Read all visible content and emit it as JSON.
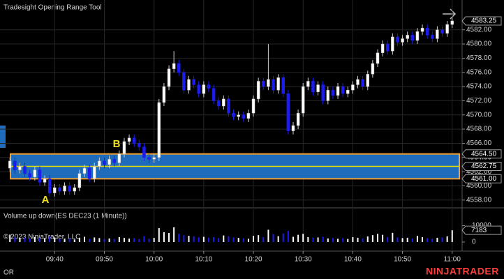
{
  "chart_data": {
    "type": "candlestick",
    "title": "Tradesight Opening Range Tool",
    "x": [
      "09:31",
      "09:32",
      "09:33",
      "09:34",
      "09:35",
      "09:36",
      "09:37",
      "09:38",
      "09:39",
      "09:40",
      "09:41",
      "09:42",
      "09:43",
      "09:44",
      "09:45",
      "09:46",
      "09:47",
      "09:48",
      "09:49",
      "09:50",
      "09:51",
      "09:52",
      "09:53",
      "09:54",
      "09:55",
      "09:56",
      "09:57",
      "09:58",
      "09:59",
      "10:00",
      "10:01",
      "10:02",
      "10:03",
      "10:04",
      "10:05",
      "10:06",
      "10:07",
      "10:08",
      "10:09",
      "10:10",
      "10:11",
      "10:12",
      "10:13",
      "10:14",
      "10:15",
      "10:16",
      "10:17",
      "10:18",
      "10:19",
      "10:20",
      "10:21",
      "10:22",
      "10:23",
      "10:24",
      "10:25",
      "10:26",
      "10:27",
      "10:28",
      "10:29",
      "10:30",
      "10:31",
      "10:32",
      "10:33",
      "10:34",
      "10:35",
      "10:36",
      "10:37",
      "10:38",
      "10:39",
      "10:40",
      "10:41",
      "10:42",
      "10:43",
      "10:44",
      "10:45",
      "10:46",
      "10:47",
      "10:48",
      "10:49",
      "10:50",
      "10:51",
      "10:52",
      "10:53",
      "10:54",
      "10:55",
      "10:56",
      "10:57",
      "10:58",
      "10:59",
      "11:00"
    ],
    "open": [
      4562.5,
      4563.5,
      4562.25,
      4562.75,
      4561.75,
      4561.25,
      4562.25,
      4560.5,
      4561.0,
      4559.0,
      4559.75,
      4559.25,
      4560.0,
      4559.25,
      4559.75,
      4561.75,
      4562.5,
      4561.0,
      4562.75,
      4563.5,
      4563.0,
      4563.75,
      4563.25,
      4564.5,
      4566.25,
      4566.75,
      4566.0,
      4565.5,
      4564.0,
      4563.75,
      4564.0,
      4571.75,
      4574.0,
      4576.5,
      4577.25,
      4576.0,
      4573.5,
      4575.0,
      4574.25,
      4573.0,
      4574.25,
      4573.75,
      4572.0,
      4571.25,
      4572.25,
      4570.25,
      4569.75,
      4570.0,
      4569.5,
      4570.25,
      4572.25,
      4574.75,
      4574.0,
      4575.0,
      4573.5,
      4575.25,
      4573.0,
      4567.75,
      4568.5,
      4570.25,
      4574.0,
      4574.75,
      4573.25,
      4574.25,
      4572.0,
      4573.5,
      4572.75,
      4574.0,
      4573.0,
      4573.5,
      4574.25,
      4575.0,
      4574.0,
      4575.75,
      4577.25,
      4578.75,
      4580.0,
      4579.0,
      4581.0,
      4580.25,
      4580.75,
      4581.25,
      4580.5,
      4581.75,
      4582.25,
      4581.25,
      4580.75,
      4582.0,
      4581.5,
      4582.75
    ],
    "high": [
      4564.0,
      4564.0,
      4563.25,
      4563.25,
      4562.25,
      4562.75,
      4562.75,
      4561.5,
      4561.5,
      4560.25,
      4560.25,
      4560.5,
      4560.5,
      4560.25,
      4562.25,
      4563.0,
      4563.0,
      4563.25,
      4564.0,
      4564.0,
      4564.25,
      4564.25,
      4565.0,
      4566.75,
      4567.25,
      4567.25,
      4566.5,
      4566.0,
      4564.5,
      4564.5,
      4572.25,
      4574.5,
      4577.0,
      4579.0,
      4577.75,
      4576.5,
      4575.5,
      4575.5,
      4574.75,
      4574.75,
      4574.75,
      4574.25,
      4572.5,
      4572.75,
      4572.75,
      4570.75,
      4570.5,
      4570.5,
      4570.75,
      4572.75,
      4575.25,
      4575.25,
      4580.0,
      4575.5,
      4575.75,
      4575.75,
      4573.5,
      4569.0,
      4570.75,
      4574.5,
      4575.25,
      4575.25,
      4574.75,
      4574.75,
      4574.0,
      4574.0,
      4574.5,
      4574.5,
      4574.0,
      4574.75,
      4575.5,
      4575.5,
      4576.25,
      4577.75,
      4579.25,
      4580.5,
      4580.5,
      4581.5,
      4581.5,
      4581.25,
      4581.75,
      4581.75,
      4582.25,
      4582.75,
      4582.75,
      4581.75,
      4582.5,
      4582.5,
      4583.25,
      4583.75
    ],
    "low": [
      4562.0,
      4561.75,
      4561.75,
      4561.25,
      4560.75,
      4560.75,
      4560.0,
      4560.0,
      4558.5,
      4558.5,
      4558.75,
      4558.75,
      4558.75,
      4558.75,
      4559.25,
      4561.25,
      4560.5,
      4560.5,
      4562.25,
      4562.5,
      4562.5,
      4562.75,
      4562.75,
      4564.0,
      4565.75,
      4565.5,
      4565.0,
      4563.5,
      4563.25,
      4563.25,
      4563.5,
      4571.25,
      4573.5,
      4576.0,
      4575.5,
      4573.0,
      4573.0,
      4573.75,
      4572.5,
      4572.5,
      4573.25,
      4571.5,
      4570.75,
      4570.75,
      4569.75,
      4569.25,
      4569.25,
      4569.0,
      4569.0,
      4569.75,
      4571.75,
      4573.5,
      4573.5,
      4573.0,
      4573.0,
      4572.5,
      4567.25,
      4567.25,
      4568.0,
      4569.75,
      4573.5,
      4572.75,
      4572.75,
      4571.5,
      4571.5,
      4572.25,
      4572.25,
      4572.5,
      4572.5,
      4573.0,
      4573.75,
      4573.5,
      4573.5,
      4575.25,
      4576.75,
      4578.25,
      4578.5,
      4578.5,
      4579.75,
      4579.75,
      4580.25,
      4580.0,
      4580.0,
      4581.25,
      4580.75,
      4580.25,
      4580.25,
      4581.0,
      4581.0,
      4582.25
    ],
    "close": [
      4563.5,
      4562.25,
      4562.75,
      4561.75,
      4561.25,
      4562.25,
      4560.5,
      4561.0,
      4559.0,
      4559.75,
      4559.25,
      4560.0,
      4559.25,
      4559.75,
      4561.75,
      4562.5,
      4561.0,
      4562.75,
      4563.5,
      4563.0,
      4563.75,
      4563.25,
      4564.5,
      4566.25,
      4566.75,
      4566.0,
      4565.5,
      4564.0,
      4563.75,
      4564.0,
      4571.75,
      4574.0,
      4576.5,
      4577.25,
      4576.0,
      4573.5,
      4575.0,
      4574.25,
      4573.0,
      4574.25,
      4573.75,
      4572.0,
      4571.25,
      4572.25,
      4570.25,
      4569.75,
      4570.0,
      4569.5,
      4570.25,
      4572.25,
      4574.75,
      4574.0,
      4575.0,
      4573.5,
      4575.25,
      4573.0,
      4567.75,
      4568.5,
      4570.25,
      4574.0,
      4574.75,
      4573.25,
      4574.25,
      4572.0,
      4573.5,
      4572.75,
      4574.0,
      4573.0,
      4573.5,
      4574.25,
      4575.0,
      4574.0,
      4575.75,
      4577.25,
      4578.75,
      4580.0,
      4579.0,
      4581.0,
      4580.25,
      4580.75,
      4581.25,
      4580.5,
      4581.75,
      4582.25,
      4581.25,
      4580.75,
      4582.0,
      4581.5,
      4582.75,
      4583.25
    ],
    "up_color": "#ffffff",
    "down_color": "#1c1cf0",
    "xlim": [
      "09:29",
      "11:02"
    ],
    "xticks": [
      "09:40",
      "09:50",
      "10:00",
      "10:10",
      "10:20",
      "10:30",
      "10:40",
      "10:50",
      "11:00"
    ],
    "ylim": [
      4556.9,
      4586.2
    ],
    "yticks": [
      {
        "value": 4558,
        "label": "4558.00"
      },
      {
        "value": 4560,
        "label": "4560.00"
      },
      {
        "value": 4562,
        "label": "4562.00"
      },
      {
        "value": 4564,
        "label": "4564.00"
      },
      {
        "value": 4566,
        "label": "4566.00"
      },
      {
        "value": 4568,
        "label": "4568.00"
      },
      {
        "value": 4570,
        "label": "4570.00"
      },
      {
        "value": 4572,
        "label": "4572.00"
      },
      {
        "value": 4574,
        "label": "4574.00"
      },
      {
        "value": 4576,
        "label": "4576.00"
      },
      {
        "value": 4578,
        "label": "4578.00"
      },
      {
        "value": 4580,
        "label": "4580.00"
      },
      {
        "value": 4582,
        "label": "4582.00"
      }
    ],
    "grid": true,
    "opening_range": {
      "high": {
        "value": 4564.5,
        "label": "4564.50"
      },
      "mid": 4562.75,
      "low": {
        "value": 4561,
        "label": "4561.00"
      },
      "color": "#1f6cbd",
      "border_color": "#f0a030",
      "mid_color": "#e8e000"
    },
    "annotations": [
      "A",
      "B"
    ],
    "annotation_color": "#f0e020",
    "volume": {
      "title": "Volume up down(ES DEC23 (1 Minute))",
      "values": [
        4500,
        3000,
        2500,
        2800,
        2200,
        3000,
        2600,
        2400,
        3500,
        2800,
        2000,
        1800,
        2200,
        1600,
        2500,
        3200,
        2000,
        2800,
        2400,
        1800,
        2200,
        1900,
        3000,
        2600,
        2100,
        2400,
        1800,
        3600,
        2000,
        2500,
        8500,
        6000,
        5500,
        9000,
        5000,
        4200,
        3800,
        3500,
        2800,
        3200,
        2600,
        3000,
        2400,
        4000,
        3600,
        2800,
        2500,
        2300,
        2000,
        3800,
        4200,
        3000,
        7500,
        4800,
        3600,
        5200,
        6800,
        3200,
        4400,
        5000,
        3000,
        2600,
        2800,
        3200,
        2200,
        2500,
        2000,
        2400,
        1900,
        3000,
        2600,
        2200,
        3400,
        4200,
        5000,
        4400,
        3000,
        5600,
        2800,
        2400,
        2600,
        2200,
        3800,
        3000,
        2400,
        2000,
        2600,
        2800,
        3500,
        7183
      ],
      "ylim": [
        0,
        20000
      ],
      "yticks": [
        0,
        10000
      ]
    }
  },
  "copyright": "© 2023 NinjaTrader, LLC",
  "footer_label": "OR",
  "brand": "NINJATRADER"
}
